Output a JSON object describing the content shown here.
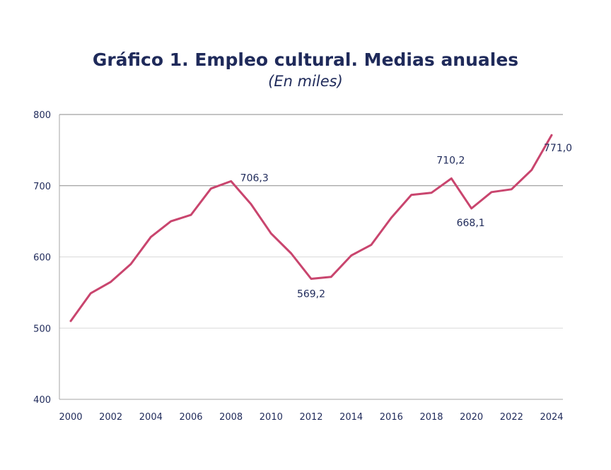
{
  "chart_data": {
    "type": "line",
    "title": "Gráfico 1. Empleo cultural. Medias anuales",
    "subtitle": "(En miles)",
    "xlabel": "",
    "ylabel": "",
    "ylim": [
      400,
      800
    ],
    "yticks": [
      "400",
      "500",
      "600",
      "700",
      "800"
    ],
    "xticks": [
      "2000",
      "2002",
      "2004",
      "2006",
      "2008",
      "2010",
      "2012",
      "2014",
      "2016",
      "2018",
      "2020",
      "2022",
      "2024"
    ],
    "grid": true,
    "legend": "none",
    "color": "#c9456e",
    "x": [
      2000,
      2001,
      2002,
      2003,
      2004,
      2005,
      2006,
      2007,
      2008,
      2009,
      2010,
      2011,
      2012,
      2013,
      2014,
      2015,
      2016,
      2017,
      2018,
      2019,
      2020,
      2021,
      2022,
      2023,
      2024
    ],
    "values": [
      510,
      549,
      565,
      590,
      628,
      650,
      659,
      696,
      706.3,
      674,
      633,
      605,
      569.2,
      572,
      602,
      617,
      655,
      687,
      690,
      710.2,
      668.1,
      691,
      695,
      722,
      771.0
    ],
    "data_labels": [
      {
        "x": 2008,
        "text": "706,3"
      },
      {
        "x": 2012,
        "text": "569,2"
      },
      {
        "x": 2019,
        "text": "710,2"
      },
      {
        "x": 2020,
        "text": "668,1"
      },
      {
        "x": 2024,
        "text": "771,0"
      }
    ]
  }
}
